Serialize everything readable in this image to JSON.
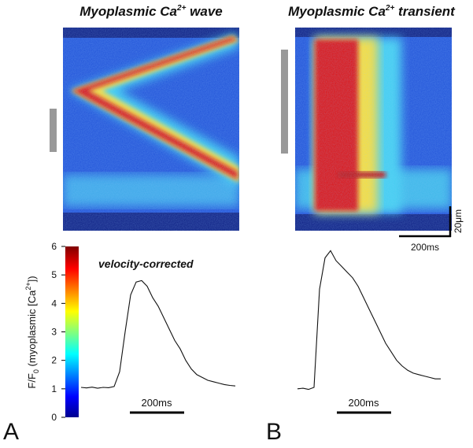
{
  "panels": [
    {
      "label": "A",
      "title": {
        "main": "Myoplasmic Ca",
        "sup": "2+",
        "end": " wave"
      },
      "annotation": "velocity-corrected",
      "time_scale": "200ms",
      "trace": {
        "x": [
          0,
          20,
          40,
          60,
          80,
          100,
          120,
          140,
          160,
          180,
          200,
          220,
          240,
          260,
          280,
          300,
          320,
          340,
          360,
          380,
          400,
          420,
          440,
          460,
          480,
          500,
          520,
          540,
          560
        ],
        "values": [
          1.05,
          1.03,
          1.06,
          1.02,
          1.05,
          1.04,
          1.08,
          1.6,
          3.0,
          4.3,
          4.75,
          4.8,
          4.6,
          4.2,
          3.9,
          3.5,
          3.1,
          2.7,
          2.4,
          2.0,
          1.7,
          1.5,
          1.4,
          1.3,
          1.25,
          1.2,
          1.15,
          1.12,
          1.1
        ]
      }
    },
    {
      "label": "B",
      "title": {
        "main": "Myoplasmic Ca",
        "sup": "2+",
        "end": " transient"
      },
      "time_scale": "200ms",
      "image_scale": {
        "time": "200ms",
        "space": "20μm"
      },
      "trace": {
        "x": [
          0,
          20,
          40,
          60,
          80,
          100,
          120,
          140,
          160,
          180,
          200,
          220,
          240,
          260,
          280,
          300,
          320,
          340,
          360,
          380,
          400,
          420,
          440,
          460,
          480,
          500,
          520
        ],
        "values": [
          1.0,
          1.02,
          0.98,
          1.05,
          4.5,
          5.6,
          5.85,
          5.5,
          5.3,
          5.1,
          4.9,
          4.6,
          4.2,
          3.8,
          3.4,
          3.0,
          2.6,
          2.3,
          2.0,
          1.8,
          1.65,
          1.55,
          1.5,
          1.45,
          1.4,
          1.35,
          1.35
        ]
      }
    }
  ],
  "colorbar": {
    "label": {
      "a": "F/F",
      "sub": "0",
      "b": " (myoplasmic [Ca",
      "sup": "2+",
      "c": "])"
    },
    "ylim": [
      0,
      6
    ],
    "ticks": [
      0,
      1,
      2,
      3,
      4,
      5,
      6
    ]
  }
}
